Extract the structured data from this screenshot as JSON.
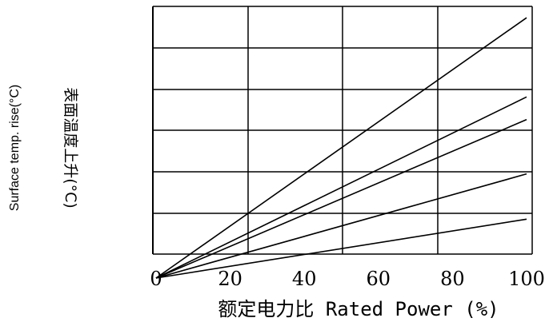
{
  "chart_data": {
    "type": "line",
    "title": "",
    "xlabel": "额定电力比 Rated Power (%)",
    "ylabel_en": "Surface temp. rise(°C)",
    "ylabel_cn": "表面温度上升(°C)",
    "xlim": [
      0,
      100
    ],
    "ylim": [
      0,
      6
    ],
    "x_ticks": [
      "0",
      "20",
      "40",
      "60",
      "80",
      "100"
    ],
    "grid": true,
    "legend": "none",
    "line_color": "#000000",
    "series": [
      {
        "x": [
          0,
          100
        ],
        "y": [
          0,
          5.75
        ]
      },
      {
        "x": [
          0,
          100
        ],
        "y": [
          0,
          4.0
        ]
      },
      {
        "x": [
          0,
          100
        ],
        "y": [
          0,
          3.5
        ]
      },
      {
        "x": [
          0,
          100
        ],
        "y": [
          0,
          2.3
        ]
      },
      {
        "x": [
          0,
          100
        ],
        "y": [
          0,
          1.3
        ]
      }
    ]
  }
}
